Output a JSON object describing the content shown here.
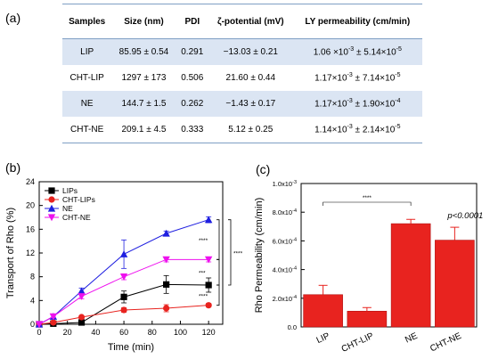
{
  "table": {
    "panel_label": "(a)",
    "headers": [
      "Samples",
      "Size (nm)",
      "PDI",
      "ζ-potential (mV)",
      "LY permeability (cm/min)"
    ],
    "rows": [
      {
        "sample": "LIP",
        "size": "85.95 ± 0.54",
        "pdi": "0.291",
        "zeta": "−13.03 ± 0.21",
        "ly": "1.06 ×10<sup>-3</sup> ± 5.14×10<sup>-5</sup>"
      },
      {
        "sample": "CHT-LIP",
        "size": "1297 ± 173",
        "pdi": "0.506",
        "zeta": "21.60 ± 0.44",
        "ly": "1.17×10<sup>-3</sup> ± 7.14×10<sup>-5</sup>"
      },
      {
        "sample": "NE",
        "size": "144.7 ± 1.5",
        "pdi": "0.262",
        "zeta": "−1.43 ± 0.17",
        "ly": "1.17×10<sup>-3</sup> ± 1.90×10<sup>-4</sup>"
      },
      {
        "sample": "CHT-NE",
        "size": "209.1 ± 4.5",
        "pdi": "0.333",
        "zeta": "5.12 ± 0.25",
        "ly": "1.14×10<sup>-3</sup> ± 2.14×10<sup>-5</sup>"
      }
    ]
  },
  "chart_data": [
    {
      "type": "line",
      "panel_label": "(b)",
      "xlabel": "Time  (min)",
      "ylabel": "Transport of Rho (%)",
      "xlim": [
        0,
        130
      ],
      "ylim": [
        0,
        24
      ],
      "xticks": [
        0,
        20,
        40,
        60,
        80,
        100,
        120
      ],
      "yticks": [
        0,
        4,
        8,
        12,
        16,
        20,
        24
      ],
      "x": [
        0,
        10,
        30,
        60,
        90,
        120
      ],
      "series": [
        {
          "name": "LIPs",
          "color": "#000000",
          "marker": "square",
          "values": [
            0,
            0.1,
            0.3,
            4.6,
            6.7,
            6.6
          ],
          "errors": [
            0,
            0.1,
            0.2,
            1.0,
            1.5,
            1.2
          ]
        },
        {
          "name": "CHT-LIPs",
          "color": "#e8231f",
          "marker": "circle",
          "values": [
            0,
            0.3,
            1.2,
            2.4,
            2.7,
            3.2
          ],
          "errors": [
            0,
            0.1,
            0.2,
            0.4,
            0.6,
            0.3
          ]
        },
        {
          "name": "NE",
          "color": "#1f1fe0",
          "marker": "triangle-up",
          "values": [
            0,
            1.3,
            5.6,
            11.8,
            15.3,
            17.6
          ],
          "errors": [
            0,
            0.2,
            0.5,
            2.4,
            0.4,
            0.5
          ]
        },
        {
          "name": "CHT-NE",
          "color": "#ee11ee",
          "marker": "triangle-down",
          "values": [
            0,
            1.3,
            4.7,
            8.0,
            10.9,
            10.9
          ],
          "errors": [
            0,
            0.2,
            0.4,
            0.5,
            0.4,
            0.4
          ]
        }
      ],
      "significance": [
        {
          "label": "****",
          "from_series": "NE",
          "to_series": "CHT-NE"
        },
        {
          "label": "***",
          "from_series": "CHT-NE",
          "to_series": "LIPs"
        },
        {
          "label": "****",
          "from_series": "LIPs",
          "to_series": "CHT-LIPs"
        },
        {
          "label": "****",
          "from_series": "NE",
          "to_series": "LIPs"
        }
      ],
      "legend": "top-left"
    },
    {
      "type": "bar",
      "panel_label": "(c)",
      "ylabel": "Rho Permeability  (cm/min)",
      "categories": [
        "LIP",
        "CHT-LIP",
        "NE",
        "CHT-NE"
      ],
      "values": [
        0.000225,
        0.00011,
        0.00072,
        0.000605
      ],
      "errors": [
        6.5e-05,
        2.5e-05,
        3e-05,
        9e-05
      ],
      "bar_color": "#e8231f",
      "ylim": [
        0,
        0.001
      ],
      "yticks": [
        0,
        0.0002,
        0.0004,
        0.0006,
        0.0008,
        0.001
      ],
      "ytick_labels": [
        "0.0",
        "2.0x10-4",
        "4.0x10-4",
        "6.0x10-4",
        "8.0x10-4",
        "1.0x10-3"
      ],
      "significance": {
        "label": "****",
        "from": "LIP",
        "to": "NE"
      },
      "annotation": "p<0.0001"
    }
  ]
}
